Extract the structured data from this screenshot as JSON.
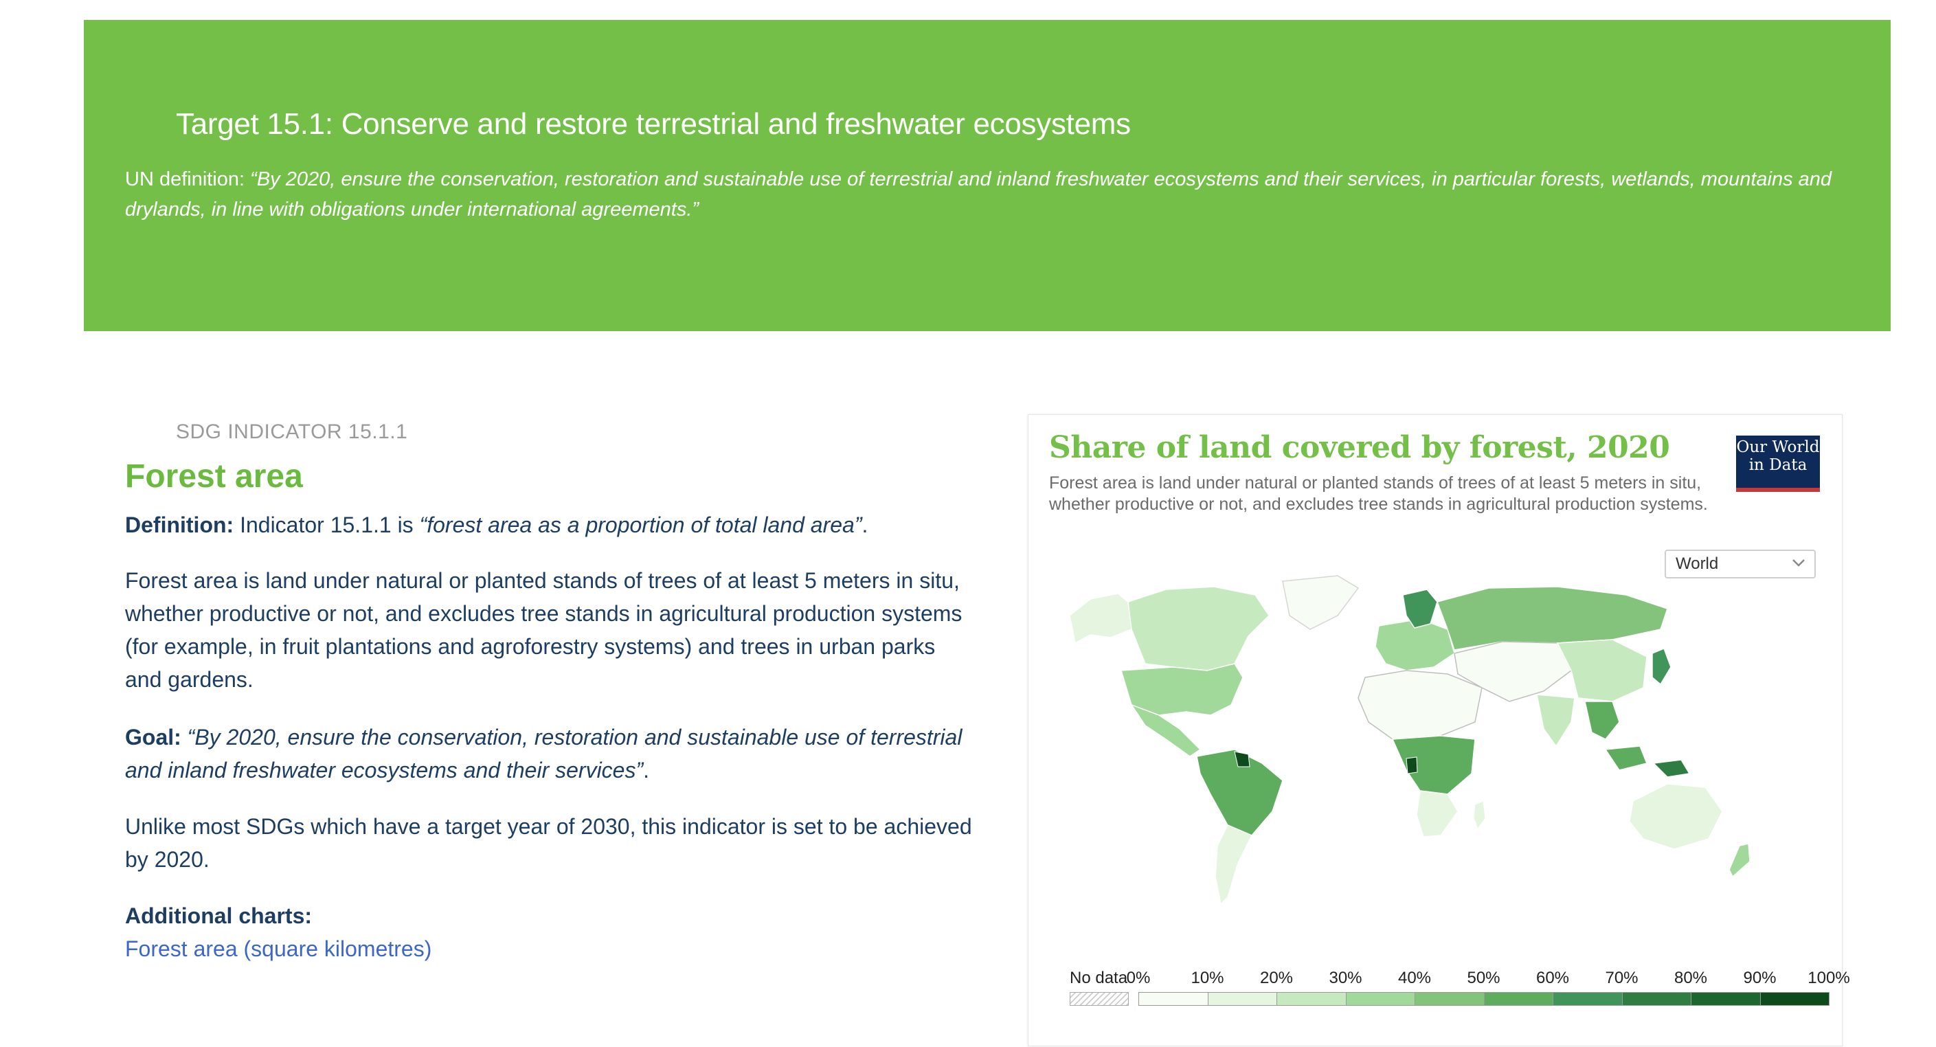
{
  "banner": {
    "title": "Target 15.1: Conserve and restore terrestrial and freshwater ecosystems",
    "def_prefix": "UN definition: ",
    "def_quote": "“By 2020, ensure the conservation, restoration and sustainable use of terrestrial and inland freshwater ecosystems and their services, in particular forests, wetlands, mountains and drylands, in line with obligations under international agreements.”",
    "color": "#74bf48"
  },
  "indicator": {
    "code": "SDG INDICATOR 15.1.1",
    "title": "Forest area",
    "definition_label": "Definition:",
    "definition_text": " Indicator 15.1.1 is ",
    "definition_quote": "“forest area as a proportion of total land area”",
    "definition_end": ".",
    "forest_paragraph": "Forest area is land under natural or planted stands of trees of at least 5 meters in situ, whether productive or not, and excludes tree stands in agricultural production systems (for example, in fruit plantations and agroforestry systems) and trees in urban parks and gardens.",
    "goal_label": "Goal:",
    "goal_quote": " “By 2020, ensure the conservation, restoration and sustainable use of terrestrial and inland freshwater ecosystems and their services”",
    "goal_end": ".",
    "unlike_paragraph": "Unlike most SDGs which have a target year of 2030, this indicator is set to be achieved by 2020.",
    "additional_label": "Additional charts:",
    "additional_link": "Forest area (square kilometres)"
  },
  "chart": {
    "title": "Share of land covered by forest, 2020",
    "subtitle": "Forest area is land under natural or planted stands of trees of at least 5 meters in situ, whether productive or not, and excludes tree stands in agricultural production systems.",
    "logo_line1": "Our World",
    "logo_line2": "in Data",
    "region_selected": "World",
    "accent_color": "#74bf48"
  },
  "chart_data": {
    "type": "heatmap",
    "title": "Share of land covered by forest, 2020",
    "legend_no_data": "No data",
    "legend_ticks": [
      "0%",
      "10%",
      "20%",
      "30%",
      "40%",
      "50%",
      "60%",
      "70%",
      "80%",
      "90%",
      "100%"
    ],
    "legend_colors": [
      "#f7fcf5",
      "#e5f5e0",
      "#c7e9c0",
      "#a1d99b",
      "#83c37b",
      "#5eac5e",
      "#41945a",
      "#2f7d43",
      "#1e6630",
      "#0f4a1c"
    ],
    "regions": [
      {
        "name": "North America (Canada)",
        "bin": 2
      },
      {
        "name": "Alaska",
        "bin": 1
      },
      {
        "name": "Greenland",
        "bin": 0
      },
      {
        "name": "United States",
        "bin": 3
      },
      {
        "name": "Mexico & Central America",
        "bin": 3
      },
      {
        "name": "South America (Brazil/Amazon)",
        "bin": 5
      },
      {
        "name": "Guyana / Suriname",
        "bin": 9
      },
      {
        "name": "Southern South America",
        "bin": 1
      },
      {
        "name": "Europe",
        "bin": 3
      },
      {
        "name": "Scandinavia (Finland/Sweden)",
        "bin": 6
      },
      {
        "name": "Russia",
        "bin": 4
      },
      {
        "name": "North Africa & Sahara",
        "bin": 0
      },
      {
        "name": "Central Africa",
        "bin": 5
      },
      {
        "name": "Gabon",
        "bin": 9
      },
      {
        "name": "Southern Africa",
        "bin": 1
      },
      {
        "name": "Middle East & Central Asia",
        "bin": 0
      },
      {
        "name": "China",
        "bin": 2
      },
      {
        "name": "Japan / Korea",
        "bin": 6
      },
      {
        "name": "India",
        "bin": 2
      },
      {
        "name": "Southeast Asia",
        "bin": 5
      },
      {
        "name": "Papua New Guinea",
        "bin": 7
      },
      {
        "name": "Australia",
        "bin": 1
      },
      {
        "name": "New Zealand",
        "bin": 3
      }
    ]
  }
}
